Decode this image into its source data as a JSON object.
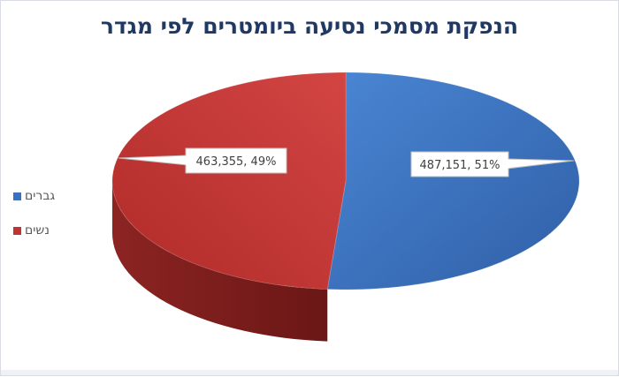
{
  "chart_data": {
    "type": "pie",
    "title": "הנפקת מסמכי נסיעה ביומטרים לפי מגדר",
    "slices": [
      {
        "label": "גברים",
        "value": 487151,
        "percent": 51,
        "data_label": "487,151, 51%",
        "color": "#3a70c0"
      },
      {
        "label": "נשים",
        "value": 463355,
        "percent": 49,
        "data_label": "463,355, 49%",
        "color": "#c13432"
      }
    ],
    "legend_position": "left",
    "style": "3d"
  }
}
